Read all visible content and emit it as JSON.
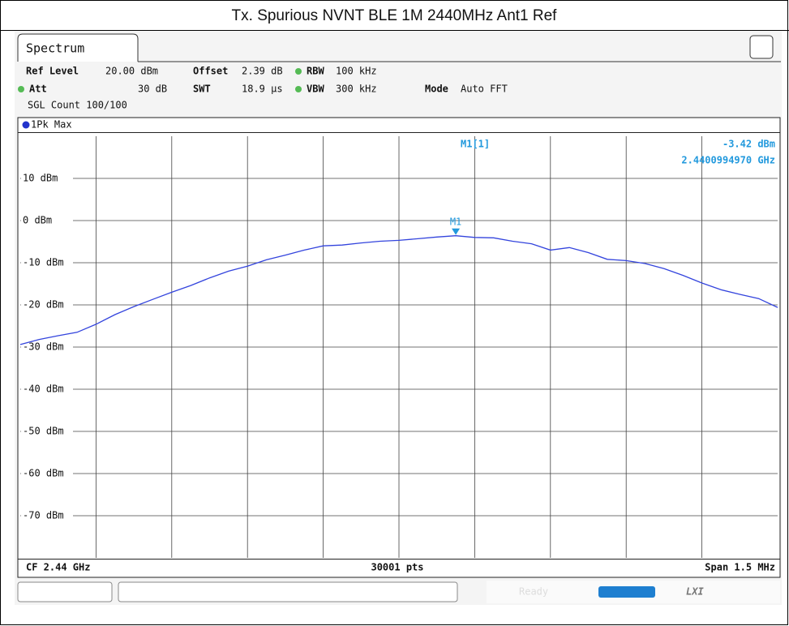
{
  "header": {
    "title": "Tx. Spurious NVNT BLE 1M 2440MHz Ant1 Ref"
  },
  "tab": "Spectrum",
  "settings": {
    "ref_level": {
      "label": "Ref Level",
      "value": "20.00 dBm"
    },
    "offset": {
      "label": "Offset",
      "value": "2.39 dB"
    },
    "rbw": {
      "label": "RBW",
      "value": "100 kHz"
    },
    "att": {
      "label": "Att",
      "value": "30 dB"
    },
    "swt": {
      "label": "SWT",
      "value": "18.9 µs"
    },
    "vbw": {
      "label": "VBW",
      "value": "300 kHz"
    },
    "mode": {
      "label": "Mode",
      "value": "Auto FFT"
    },
    "count": "SGL Count 100/100"
  },
  "trace_label": "1Pk Max",
  "footer": {
    "left": "CF 2.44 GHz",
    "center": "30001 pts",
    "right": "Span 1.5 MHz"
  },
  "status": {
    "ready": "Ready",
    "lxi": "LXI"
  },
  "chart_data": {
    "type": "line",
    "ylim": [
      -80,
      20
    ],
    "yticks": [
      {
        "value": 10,
        "label": "10 dBm"
      },
      {
        "value": 0,
        "label": "0 dBm"
      },
      {
        "value": -10,
        "label": "-10 dBm"
      },
      {
        "value": -20,
        "label": "-20 dBm"
      },
      {
        "value": -30,
        "label": "-30 dBm"
      },
      {
        "value": -40,
        "label": "-40 dBm"
      },
      {
        "value": -50,
        "label": "-50 dBm"
      },
      {
        "value": -60,
        "label": "-60 dBm"
      },
      {
        "value": -70,
        "label": "-70 dBm"
      }
    ],
    "grid": true,
    "series": [
      {
        "name": "1Pk Max",
        "color": "#3344dd",
        "values": [
          -29.4,
          -28.2,
          -27.3,
          -26.5,
          -24.6,
          -22.3,
          -20.4,
          -18.7,
          -17.0,
          -15.4,
          -13.6,
          -12.0,
          -10.8,
          -9.3,
          -8.2,
          -7.0,
          -6.0,
          -5.8,
          -5.3,
          -4.9,
          -4.7,
          -4.3,
          -3.9,
          -3.6,
          -4.0,
          -4.1,
          -4.9,
          -5.5,
          -7.0,
          -6.4,
          -7.6,
          -9.2,
          -9.5,
          -10.2,
          -11.4,
          -13.0,
          -14.8,
          -16.4,
          -17.5,
          -18.5,
          -20.6
        ]
      }
    ],
    "marker": {
      "name": "M1",
      "label": "M1[1]",
      "value": -3.42,
      "value_label": "-3.42 dBm",
      "x_label": "2.4400994970 GHz",
      "color": "#2299dd"
    }
  }
}
